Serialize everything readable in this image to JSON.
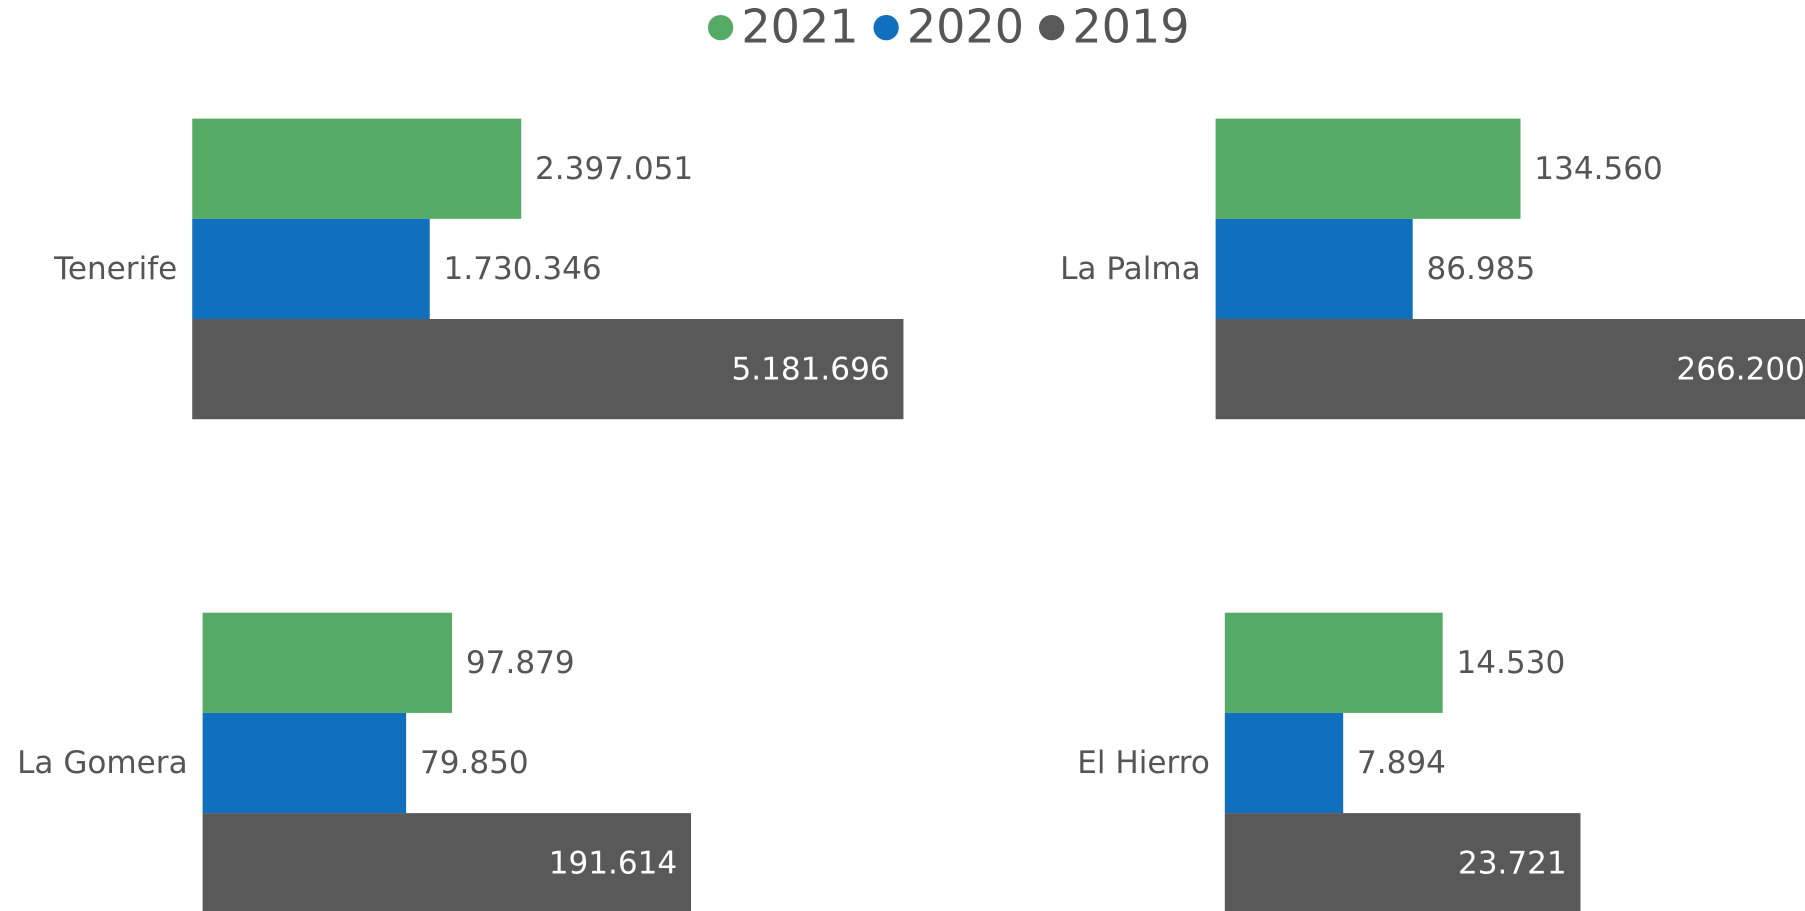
{
  "legend": [
    {
      "name": "2021",
      "color": "#55ab66"
    },
    {
      "name": "2020",
      "color": "#1170bd"
    },
    {
      "name": "2019",
      "color": "#595959"
    }
  ],
  "chart_data": [
    {
      "type": "bar",
      "categories": [
        "Tenerife"
      ],
      "xlim": [
        0,
        5200000
      ],
      "series": [
        {
          "values": [
            2397051
          ],
          "value_labels": [
            "2.397.051"
          ]
        },
        {
          "values": [
            1730346
          ],
          "value_labels": [
            "1.730.346"
          ]
        },
        {
          "values": [
            5181696
          ],
          "value_labels": [
            "5.181.696"
          ]
        }
      ]
    },
    {
      "type": "bar",
      "categories": [
        "La Palma"
      ],
      "xlim": [
        0,
        315000
      ],
      "series": [
        {
          "values": [
            134560
          ],
          "value_labels": [
            "134.560"
          ]
        },
        {
          "values": [
            86985
          ],
          "value_labels": [
            "86.985"
          ]
        },
        {
          "values": [
            266200
          ],
          "value_labels": [
            "266.200"
          ]
        }
      ]
    },
    {
      "type": "bar",
      "categories": [
        "La Gomera"
      ],
      "xlim": [
        0,
        280000
      ],
      "series": [
        {
          "values": [
            97879
          ],
          "value_labels": [
            "97.879"
          ]
        },
        {
          "values": [
            79850
          ],
          "value_labels": [
            "79.850"
          ]
        },
        {
          "values": [
            191614
          ],
          "value_labels": [
            "191.614"
          ]
        }
      ]
    },
    {
      "type": "bar",
      "categories": [
        "El Hierro"
      ],
      "xlim": [
        0,
        47600
      ],
      "series": [
        {
          "values": [
            14530
          ],
          "value_labels": [
            "14.530"
          ]
        },
        {
          "values": [
            7894
          ],
          "value_labels": [
            "7.894"
          ]
        },
        {
          "values": [
            23721
          ],
          "value_labels": [
            "23.721"
          ]
        }
      ]
    }
  ]
}
